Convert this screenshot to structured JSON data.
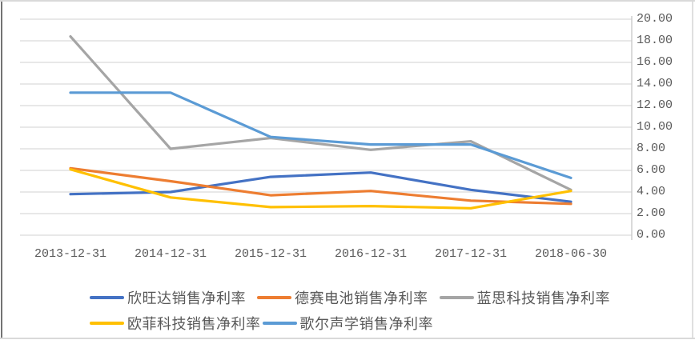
{
  "chart_data": {
    "type": "line",
    "title": "",
    "xlabel": "",
    "ylabel": "",
    "categories": [
      "2013-12-31",
      "2014-12-31",
      "2015-12-31",
      "2016-12-31",
      "2017-12-31",
      "2018-06-30"
    ],
    "series": [
      {
        "name": "欣旺达销售净利率",
        "color": "#4472C4",
        "values": [
          3.8,
          4.0,
          5.4,
          5.8,
          4.2,
          3.1
        ]
      },
      {
        "name": "德赛电池销售净利率",
        "color": "#ED7D31",
        "values": [
          6.2,
          5.0,
          3.7,
          4.1,
          3.2,
          2.9
        ]
      },
      {
        "name": "蓝思科技销售净利率",
        "color": "#A5A5A5",
        "values": [
          18.4,
          8.0,
          9.0,
          7.9,
          8.7,
          4.2
        ]
      },
      {
        "name": "欧菲科技销售净利率",
        "color": "#FFC000",
        "values": [
          6.1,
          3.5,
          2.6,
          2.7,
          2.5,
          4.1
        ]
      },
      {
        "name": "歌尔声学销售净利率",
        "color": "#5B9BD5",
        "values": [
          13.2,
          13.2,
          9.1,
          8.4,
          8.4,
          5.3
        ]
      }
    ],
    "y_axis": {
      "side": "right",
      "min": 0,
      "max": 20,
      "step": 2,
      "tick_labels": [
        "20.00",
        "18.00",
        "16.00",
        "14.00",
        "12.00",
        "10.00",
        "8.00",
        "6.00",
        "4.00",
        "2.00",
        "0.00"
      ]
    },
    "grid": true,
    "legend_position": "bottom",
    "legend_rows": [
      [
        0,
        1,
        2
      ],
      [
        3,
        4
      ]
    ],
    "colors": {
      "gridline": "#D9D9D9",
      "axis_line": "#C6C6C6",
      "tick_text": "#595959",
      "legend_text": "#595959",
      "background": "#FFFFFF"
    }
  }
}
